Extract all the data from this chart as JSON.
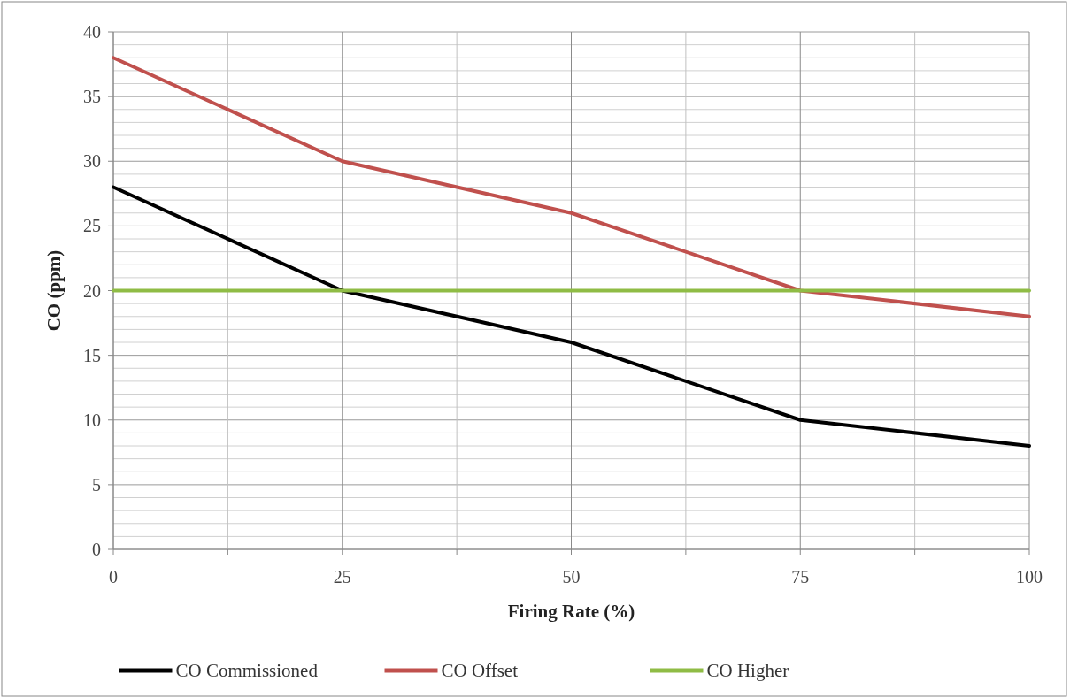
{
  "chart_data": {
    "type": "line",
    "xlabel": "Firing Rate (%)",
    "ylabel": "CO (ppm)",
    "x": [
      0,
      25,
      50,
      75,
      100
    ],
    "series": [
      {
        "name": "CO Commissioned",
        "color": "#000000",
        "values": [
          28,
          20,
          16,
          10,
          8
        ]
      },
      {
        "name": "CO Offset",
        "color": "#c0504d",
        "values": [
          38,
          30,
          26,
          20,
          18
        ]
      },
      {
        "name": "CO Higher",
        "color": "#8fbc45",
        "values": [
          20,
          20,
          20,
          20,
          20
        ]
      }
    ],
    "xlim": [
      0,
      100
    ],
    "xticks": [
      0,
      {
        "value": 12.5,
        "label": null
      },
      25,
      {
        "value": 37.5,
        "label": null
      },
      50,
      {
        "value": 62.5,
        "label": null
      },
      75,
      {
        "value": 87.5,
        "label": null
      },
      100
    ],
    "ylim": [
      0,
      40
    ],
    "yticks": [
      0,
      {
        "value": 1,
        "label": null
      },
      {
        "value": 2,
        "label": null
      },
      {
        "value": 3,
        "label": null
      },
      {
        "value": 4,
        "label": null
      },
      5,
      {
        "value": 6,
        "label": null
      },
      {
        "value": 7,
        "label": null
      },
      {
        "value": 8,
        "label": null
      },
      {
        "value": 9,
        "label": null
      },
      10,
      {
        "value": 11,
        "label": null
      },
      {
        "value": 12,
        "label": null
      },
      {
        "value": 13,
        "label": null
      },
      {
        "value": 14,
        "label": null
      },
      15,
      {
        "value": 16,
        "label": null
      },
      {
        "value": 17,
        "label": null
      },
      {
        "value": 18,
        "label": null
      },
      {
        "value": 19,
        "label": null
      },
      20,
      {
        "value": 21,
        "label": null
      },
      {
        "value": 22,
        "label": null
      },
      {
        "value": 23,
        "label": null
      },
      {
        "value": 24,
        "label": null
      },
      25,
      {
        "value": 26,
        "label": null
      },
      {
        "value": 27,
        "label": null
      },
      {
        "value": 28,
        "label": null
      },
      {
        "value": 29,
        "label": null
      },
      30,
      {
        "value": 31,
        "label": null
      },
      {
        "value": 32,
        "label": null
      },
      {
        "value": 33,
        "label": null
      },
      {
        "value": 34,
        "label": null
      },
      35,
      {
        "value": 36,
        "label": null
      },
      {
        "value": 37,
        "label": null
      },
      {
        "value": 38,
        "label": null
      },
      {
        "value": 39,
        "label": null
      },
      40
    ],
    "grid": true,
    "legend": "bottom",
    "marker": "none",
    "line_style": "solid"
  }
}
